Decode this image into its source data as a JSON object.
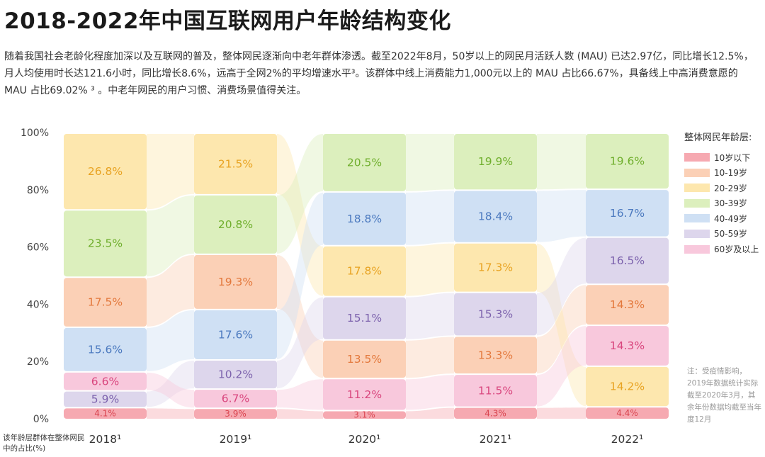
{
  "page": {
    "title": "2018-2022年中国互联网用户年龄结构变化",
    "intro": "随着我国社会老龄化程度加深以及互联网的普及，整体网民逐渐向中老年群体渗透。截至2022年8月，50岁以上的网民月活跃人数 (MAU) 已达2.97亿，同比增长12.5%，月人均使用时长达121.6小时，同比增长8.6%，远高于全网2%的平均增速水平³。该群体中线上消费能力1,000元以上的 MAU 占比66.67%，具备线上中高消费意愿的 MAU 占比69.02% ³ 。中老年网民的用户习惯、消费场景值得关注。",
    "note": "注：受疫情影响，2019年数据统计实际截至2020年3月，其余年份数据均截至当年度12月",
    "ylabel_caption": "该年龄层群体在整体网民中的占比(%)"
  },
  "chart_data": {
    "type": "bar",
    "subtype": "stacked-100-ribbon",
    "title": "2018-2022年中国互联网用户年龄结构变化",
    "ylabel": "该年龄层群体在整体网民中的占比(%)",
    "ylim": [
      0,
      100
    ],
    "y_ticks": [
      "0%",
      "20%",
      "40%",
      "60%",
      "80%",
      "100%"
    ],
    "legend_title": "整体网民年龄层:",
    "legend_position": "right",
    "categories": [
      "2018¹",
      "2019¹",
      "2020¹",
      "2021¹",
      "2022¹"
    ],
    "series": [
      {
        "name": "10岁以下",
        "color": "#f6a9b1",
        "text_color": "#d9434e",
        "values": [
          4.1,
          3.9,
          3.1,
          4.3,
          4.4
        ]
      },
      {
        "name": "10-19岁",
        "color": "#fbd0b6",
        "text_color": "#e3783c",
        "values": [
          17.5,
          19.3,
          13.5,
          13.3,
          14.3
        ]
      },
      {
        "name": "20-29岁",
        "color": "#fde7ae",
        "text_color": "#e8a322",
        "values": [
          26.8,
          21.5,
          17.8,
          17.3,
          14.2
        ]
      },
      {
        "name": "30-39岁",
        "color": "#dcefbd",
        "text_color": "#6fae2c",
        "values": [
          23.5,
          20.8,
          20.5,
          19.9,
          19.6
        ]
      },
      {
        "name": "40-49岁",
        "color": "#cfe0f4",
        "text_color": "#4b79bf",
        "values": [
          15.6,
          17.6,
          18.8,
          18.4,
          16.7
        ]
      },
      {
        "name": "50-59岁",
        "color": "#ddd6ec",
        "text_color": "#7c62ad",
        "values": [
          5.9,
          10.2,
          15.1,
          15.3,
          16.5
        ]
      },
      {
        "name": "60岁及以上",
        "color": "#f8c8dc",
        "text_color": "#d9467e",
        "values": [
          6.6,
          6.7,
          11.2,
          11.5,
          14.3
        ]
      }
    ],
    "stack_order_bottom_to_top": [
      [
        "10岁以下",
        "50-59岁",
        "60岁及以上",
        "40-49岁",
        "10-19岁",
        "30-39岁",
        "20-29岁"
      ],
      [
        "10岁以下",
        "60岁及以上",
        "50-59岁",
        "40-49岁",
        "10-19岁",
        "30-39岁",
        "20-29岁"
      ],
      [
        "10岁以下",
        "60岁及以上",
        "10-19岁",
        "50-59岁",
        "20-29岁",
        "40-49岁",
        "30-39岁"
      ],
      [
        "10岁以下",
        "60岁及以上",
        "10-19岁",
        "50-59岁",
        "20-29岁",
        "40-49岁",
        "30-39岁"
      ],
      [
        "10岁以下",
        "20-29岁",
        "60岁及以上",
        "10-19岁",
        "50-59岁",
        "40-49岁",
        "30-39岁"
      ]
    ],
    "value_labels": [
      [
        "4.1%",
        "17.5%",
        "26.8%",
        "23.5%",
        "15.6%",
        "5.9%",
        "6.6%"
      ],
      [
        "3.9%",
        "19.3%",
        "21.5%",
        "20.8%",
        "17.6%",
        "10.2%",
        "6.7%"
      ],
      [
        "3.1%",
        "13.5%",
        "17.8%",
        "20.5%",
        "18.8%",
        "15.1%",
        "11.2%"
      ],
      [
        "4.3%",
        "13.3%",
        "17.3%",
        "19.9%",
        "18.4%",
        "15.3%",
        "11.5%"
      ],
      [
        "4.4%",
        "14.3%",
        "14.2%",
        "19.6%",
        "16.7%",
        "16.5%",
        "14.3%"
      ]
    ],
    "grid": false
  }
}
